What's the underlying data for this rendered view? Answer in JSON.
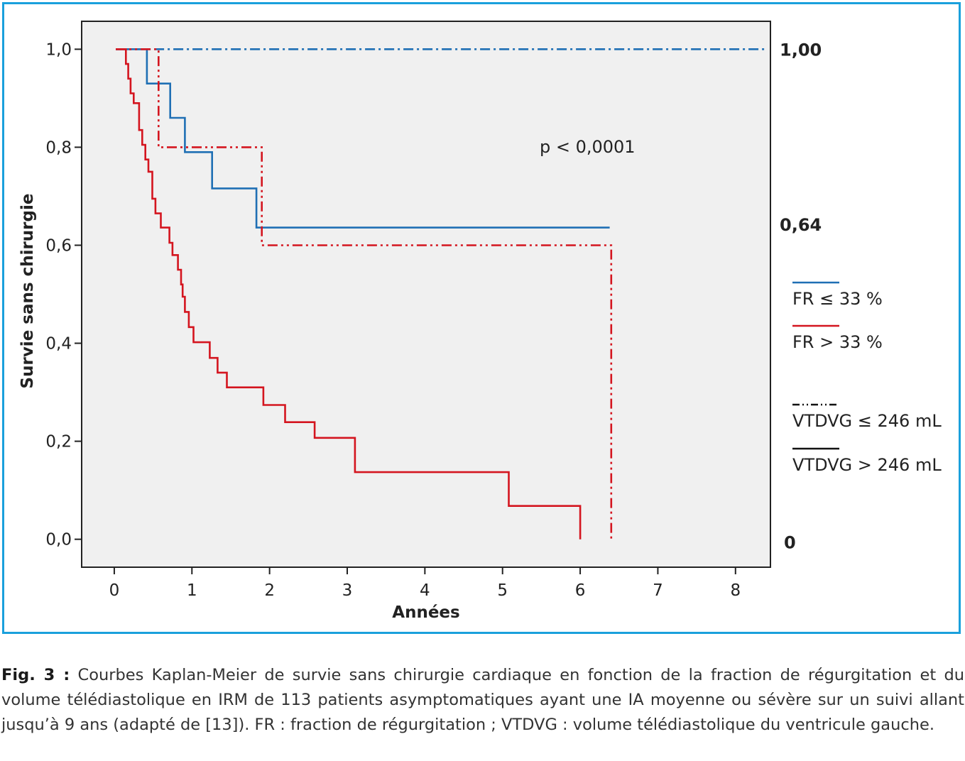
{
  "chart_data": {
    "type": "line",
    "subtype": "kaplan-meier-step",
    "xlabel": "Années",
    "ylabel": "Survie sans chirurgie",
    "xlim": [
      -0.42,
      8.45
    ],
    "ylim": [
      -0.057,
      1.057
    ],
    "x_ticks": [
      0,
      1,
      2,
      3,
      4,
      5,
      6,
      7,
      8
    ],
    "y_ticks": [
      0.0,
      0.2,
      0.4,
      0.6,
      0.8,
      1.0
    ],
    "x_tick_labels": [
      "0",
      "1",
      "2",
      "3",
      "4",
      "5",
      "6",
      "7",
      "8"
    ],
    "y_tick_labels": [
      "0,0",
      "0,2",
      "0,4",
      "0,6",
      "0,8",
      "1,0"
    ],
    "annotation": "p < 0,0001",
    "right_labels": [
      {
        "value": 1.0,
        "text": "1,00"
      },
      {
        "value": 0.643,
        "text": "0,64"
      },
      {
        "value": 0.0,
        "text": "0"
      }
    ],
    "series": [
      {
        "color": "#1f6fb4",
        "dash": "dashdot",
        "points": [
          [
            0.02,
            1.0
          ],
          [
            8.4,
            1.0
          ]
        ]
      },
      {
        "color": "#1f6fb4",
        "dash": "solid",
        "points": [
          [
            0.02,
            1.0
          ],
          [
            0.42,
            1.0
          ],
          [
            0.42,
            0.93
          ],
          [
            0.72,
            0.93
          ],
          [
            0.72,
            0.86
          ],
          [
            0.91,
            0.86
          ],
          [
            0.91,
            0.79
          ],
          [
            1.26,
            0.79
          ],
          [
            1.26,
            0.716
          ],
          [
            1.83,
            0.716
          ],
          [
            1.83,
            0.636
          ],
          [
            6.38,
            0.636
          ]
        ]
      },
      {
        "color": "#d4151f",
        "dash": "dashdotdot",
        "points": [
          [
            0.02,
            1.0
          ],
          [
            0.57,
            1.0
          ],
          [
            0.57,
            0.8
          ],
          [
            1.9,
            0.8
          ],
          [
            1.9,
            0.6
          ],
          [
            6.4,
            0.6
          ],
          [
            6.4,
            0.0
          ]
        ]
      },
      {
        "color": "#d4151f",
        "dash": "solid",
        "points": [
          [
            0.02,
            1.0
          ],
          [
            0.15,
            1.0
          ],
          [
            0.15,
            0.97
          ],
          [
            0.18,
            0.97
          ],
          [
            0.18,
            0.94
          ],
          [
            0.21,
            0.94
          ],
          [
            0.21,
            0.91
          ],
          [
            0.25,
            0.91
          ],
          [
            0.25,
            0.89
          ],
          [
            0.32,
            0.89
          ],
          [
            0.32,
            0.835
          ],
          [
            0.36,
            0.835
          ],
          [
            0.36,
            0.805
          ],
          [
            0.4,
            0.805
          ],
          [
            0.4,
            0.775
          ],
          [
            0.44,
            0.775
          ],
          [
            0.44,
            0.75
          ],
          [
            0.49,
            0.75
          ],
          [
            0.49,
            0.695
          ],
          [
            0.53,
            0.695
          ],
          [
            0.53,
            0.665
          ],
          [
            0.6,
            0.665
          ],
          [
            0.6,
            0.636
          ],
          [
            0.71,
            0.636
          ],
          [
            0.71,
            0.605
          ],
          [
            0.75,
            0.605
          ],
          [
            0.75,
            0.58
          ],
          [
            0.82,
            0.58
          ],
          [
            0.82,
            0.55
          ],
          [
            0.86,
            0.55
          ],
          [
            0.86,
            0.52
          ],
          [
            0.88,
            0.52
          ],
          [
            0.88,
            0.495
          ],
          [
            0.91,
            0.495
          ],
          [
            0.91,
            0.464
          ],
          [
            0.96,
            0.464
          ],
          [
            0.96,
            0.433
          ],
          [
            1.02,
            0.433
          ],
          [
            1.02,
            0.402
          ],
          [
            1.23,
            0.402
          ],
          [
            1.23,
            0.37
          ],
          [
            1.33,
            0.37
          ],
          [
            1.33,
            0.34
          ],
          [
            1.45,
            0.34
          ],
          [
            1.45,
            0.31
          ],
          [
            1.92,
            0.31
          ],
          [
            1.92,
            0.274
          ],
          [
            2.2,
            0.274
          ],
          [
            2.2,
            0.239
          ],
          [
            2.58,
            0.239
          ],
          [
            2.58,
            0.207
          ],
          [
            3.1,
            0.207
          ],
          [
            3.1,
            0.137
          ],
          [
            5.08,
            0.137
          ],
          [
            5.08,
            0.068
          ],
          [
            6.0,
            0.068
          ],
          [
            6.0,
            0.0
          ]
        ]
      }
    ],
    "legend": [
      {
        "label": "FR ≤ 33 %",
        "color": "#1f6fb4",
        "dash": "solid"
      },
      {
        "label": "FR > 33 %",
        "color": "#d4151f",
        "dash": "solid"
      },
      {
        "label": "VTDVG ≤ 246 mL",
        "color": "#111111",
        "dash": "dashdotdot"
      },
      {
        "label": "VTDVG > 246 mL",
        "color": "#111111",
        "dash": "solid"
      }
    ],
    "legend_placement": "right",
    "grid": false
  },
  "caption": {
    "label": "Fig. 3 :",
    "text": " Courbes Kaplan-Meier de survie sans chirurgie cardiaque en fonction de la fraction de régurgitation et du volume télédiastolique en IRM de 113 patients asymptomatiques ayant une IA moyenne ou sévère sur un suivi allant jusqu’à 9 ans (adapté de [13]). FR : fraction de régurgitation ; VTDVG : volume télédiastolique du ventricule gauche."
  }
}
